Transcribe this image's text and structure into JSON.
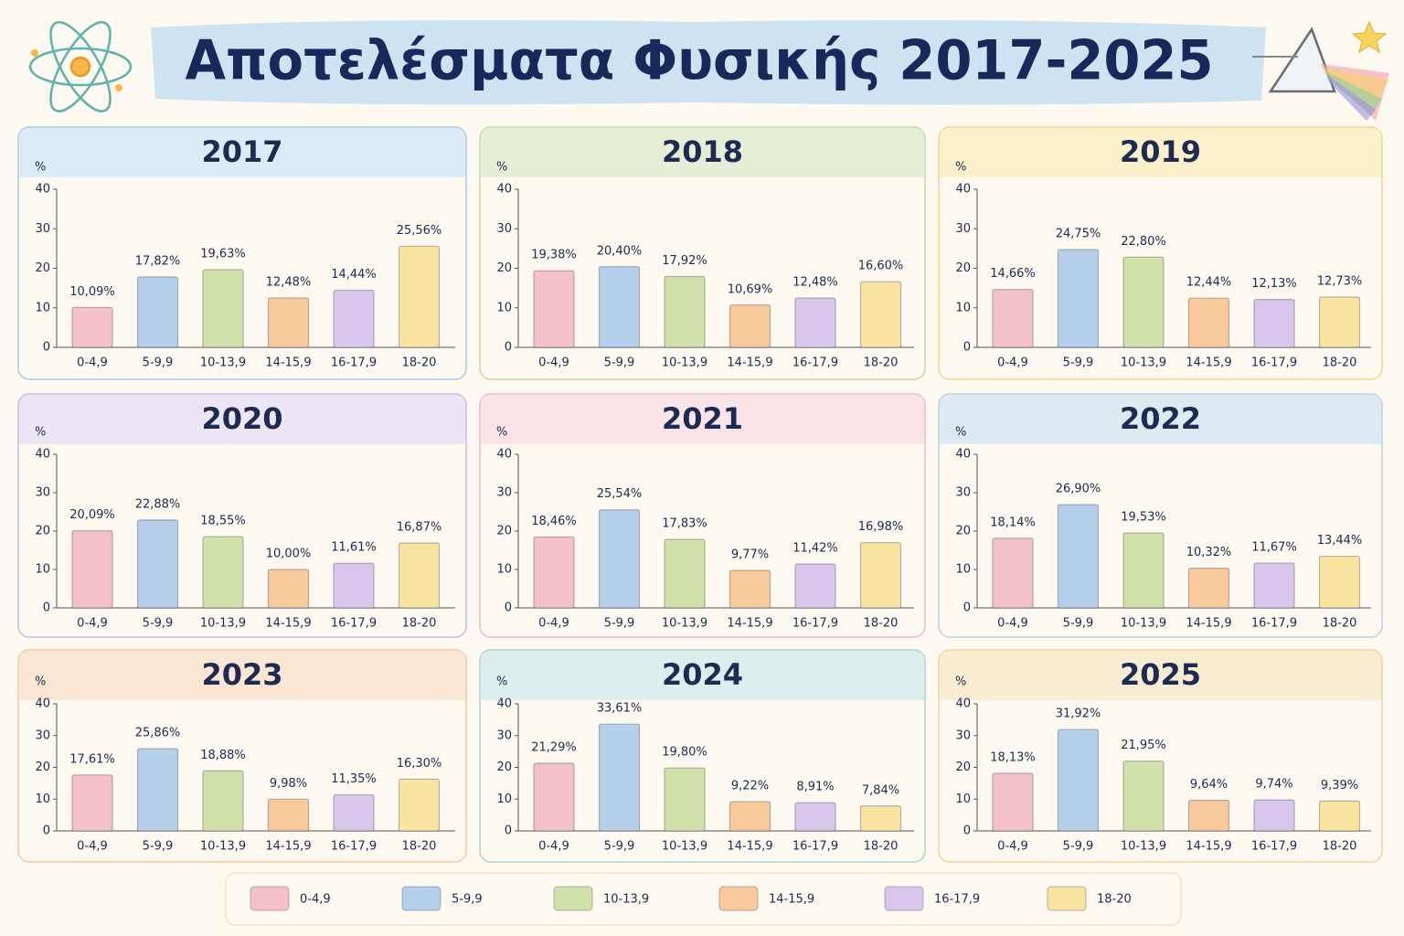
{
  "title": "Αποτελέσματα Φυσικής 2017-2025",
  "legend": [
    {
      "name": "0-4,9",
      "color": "#f4c1c9"
    },
    {
      "name": "5-9,9",
      "color": "#b6cfea"
    },
    {
      "name": "10-13,9",
      "color": "#d0e1aa"
    },
    {
      "name": "14-15,9",
      "color": "#f8c99b"
    },
    {
      "name": "16-17,9",
      "color": "#d9c7eb"
    },
    {
      "name": "18-20",
      "color": "#f8e3a0"
    }
  ],
  "chart_data": [
    {
      "type": "bar",
      "title": "2017",
      "y_label": "%",
      "categories": [
        "0-4,9",
        "5-9,9",
        "10-13,9",
        "14-15,9",
        "16-17,9",
        "18-20"
      ],
      "values": [
        10.09,
        17.82,
        19.63,
        12.48,
        14.44,
        25.56
      ],
      "value_labels": [
        "10,09%",
        "17,82%",
        "19,63%",
        "12,48%",
        "14,44%",
        "25,56%"
      ],
      "ylim": [
        0,
        40
      ],
      "yticks": [
        0,
        10,
        20,
        30,
        40
      ]
    },
    {
      "type": "bar",
      "title": "2018",
      "y_label": "%",
      "categories": [
        "0-4,9",
        "5-9,9",
        "10-13,9",
        "14-15,9",
        "16-17,9",
        "18-20"
      ],
      "values": [
        19.38,
        20.4,
        17.92,
        10.69,
        12.48,
        16.6
      ],
      "value_labels": [
        "19,38%",
        "20,40%",
        "17,92%",
        "10,69%",
        "12,48%",
        "16,60%"
      ],
      "ylim": [
        0,
        40
      ],
      "yticks": [
        0,
        10,
        20,
        30,
        40
      ]
    },
    {
      "type": "bar",
      "title": "2019",
      "y_label": "%",
      "categories": [
        "0-4,9",
        "5-9,9",
        "10-13,9",
        "14-15,9",
        "16-17,9",
        "18-20"
      ],
      "values": [
        14.66,
        24.75,
        22.8,
        12.44,
        12.13,
        12.73
      ],
      "value_labels": [
        "14,66%",
        "24,75%",
        "22,80%",
        "12,44%",
        "12,13%",
        "12,73%"
      ],
      "ylim": [
        0,
        40
      ],
      "yticks": [
        0,
        10,
        20,
        30,
        40
      ]
    },
    {
      "type": "bar",
      "title": "2020",
      "y_label": "%",
      "categories": [
        "0-4,9",
        "5-9,9",
        "10-13,9",
        "14-15,9",
        "16-17,9",
        "18-20"
      ],
      "values": [
        20.09,
        22.88,
        18.55,
        10.0,
        11.61,
        16.87
      ],
      "value_labels": [
        "20,09%",
        "22,88%",
        "18,55%",
        "10,00%",
        "11,61%",
        "16,87%"
      ],
      "ylim": [
        0,
        40
      ],
      "yticks": [
        0,
        10,
        20,
        30,
        40
      ]
    },
    {
      "type": "bar",
      "title": "2021",
      "y_label": "%",
      "categories": [
        "0-4,9",
        "5-9,9",
        "10-13,9",
        "14-15,9",
        "16-17,9",
        "18-20"
      ],
      "values": [
        18.46,
        25.54,
        17.83,
        9.77,
        11.42,
        16.98
      ],
      "value_labels": [
        "18,46%",
        "25,54%",
        "17,83%",
        "9,77%",
        "11,42%",
        "16,98%"
      ],
      "ylim": [
        0,
        40
      ],
      "yticks": [
        0,
        10,
        20,
        30,
        40
      ]
    },
    {
      "type": "bar",
      "title": "2022",
      "y_label": "%",
      "categories": [
        "0-4,9",
        "5-9,9",
        "10-13,9",
        "14-15,9",
        "16-17,9",
        "18-20"
      ],
      "values": [
        18.14,
        26.9,
        19.53,
        10.32,
        11.67,
        13.44
      ],
      "value_labels": [
        "18,14%",
        "26,90%",
        "19,53%",
        "10,32%",
        "11,67%",
        "13,44%"
      ],
      "ylim": [
        0,
        40
      ],
      "yticks": [
        0,
        10,
        20,
        30,
        40
      ]
    },
    {
      "type": "bar",
      "title": "2023",
      "y_label": "%",
      "categories": [
        "0-4,9",
        "5-9,9",
        "10-13,9",
        "14-15,9",
        "16-17,9",
        "18-20"
      ],
      "values": [
        17.61,
        25.86,
        18.88,
        9.98,
        11.35,
        16.3
      ],
      "value_labels": [
        "17,61%",
        "25,86%",
        "18,88%",
        "9,98%",
        "11,35%",
        "16,30%"
      ],
      "ylim": [
        0,
        40
      ],
      "yticks": [
        0,
        10,
        20,
        30,
        40
      ]
    },
    {
      "type": "bar",
      "title": "2024",
      "y_label": "%",
      "categories": [
        "0-4,9",
        "5-9,9",
        "10-13,9",
        "14-15,9",
        "16-17,9",
        "18-20"
      ],
      "values": [
        21.29,
        33.61,
        19.8,
        9.22,
        8.91,
        7.84
      ],
      "value_labels": [
        "21,29%",
        "33,61%",
        "19,80%",
        "9,22%",
        "8,91%",
        "7,84%"
      ],
      "ylim": [
        0,
        40
      ],
      "yticks": [
        0,
        10,
        20,
        30,
        40
      ]
    },
    {
      "type": "bar",
      "title": "2025",
      "y_label": "%",
      "categories": [
        "0-4,9",
        "5-9,9",
        "10-13,9",
        "14-15,9",
        "16-17,9",
        "18-20"
      ],
      "values": [
        18.13,
        31.92,
        21.95,
        9.64,
        9.74,
        9.39
      ],
      "value_labels": [
        "18,13%",
        "31,92%",
        "21,95%",
        "9,64%",
        "9,74%",
        "9,39%"
      ],
      "ylim": [
        0,
        40
      ],
      "yticks": [
        0,
        10,
        20,
        30,
        40
      ]
    }
  ]
}
